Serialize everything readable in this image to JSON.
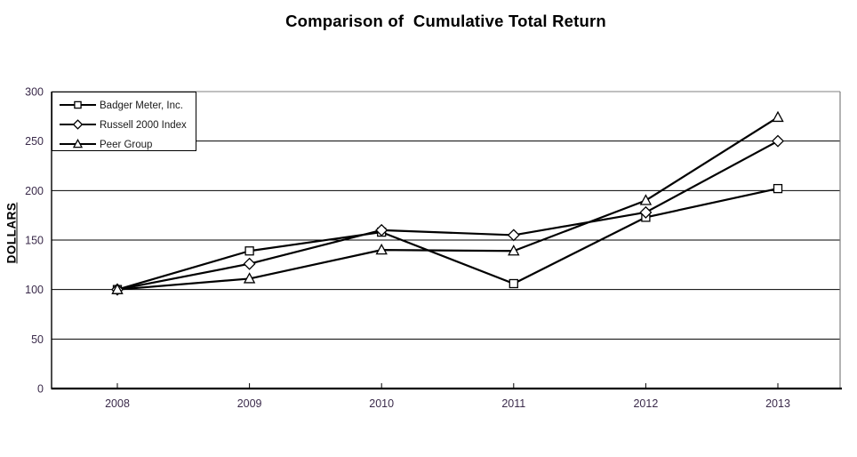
{
  "chart_data": {
    "type": "line",
    "title": "Comparison of  Cumulative Total Return",
    "ylabel": "DOLLARS",
    "xlabel": "",
    "categories": [
      "2008",
      "2009",
      "2010",
      "2011",
      "2012",
      "2013"
    ],
    "yticks": [
      0,
      50,
      100,
      150,
      200,
      250,
      300
    ],
    "ylim": [
      0,
      300
    ],
    "grid": "horizontal-black-lines",
    "legend_position": "top-left-inside",
    "series": [
      {
        "name": "Badger Meter, Inc.",
        "marker": "square",
        "color": "#000000",
        "values": [
          100,
          139,
          158,
          106,
          173,
          202
        ]
      },
      {
        "name": "Russell 2000 Index",
        "marker": "diamond",
        "color": "#000000",
        "values": [
          100,
          126,
          160,
          155,
          178,
          250
        ]
      },
      {
        "name": "Peer Group",
        "marker": "triangle",
        "color": "#000000",
        "values": [
          100,
          111,
          140,
          139,
          190,
          274
        ]
      }
    ],
    "colors": {
      "line": "#000000",
      "grid": "#000000",
      "frame_gray": "#808080",
      "tick_label": "#3a2a4a",
      "legend_text": "#1a1a1a",
      "marker_fill": "#ffffff",
      "background": "#ffffff"
    }
  }
}
